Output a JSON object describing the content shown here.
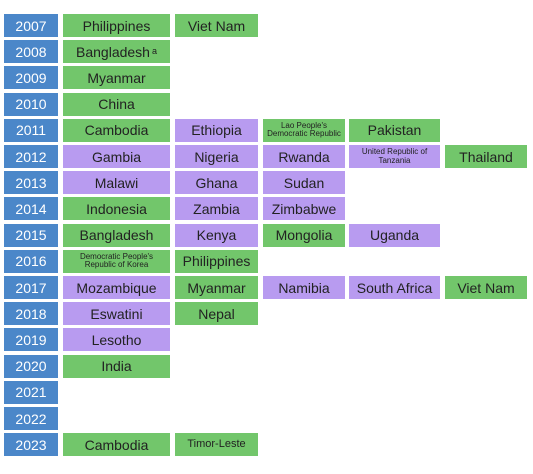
{
  "rows": [
    {
      "year": "2007",
      "cells": [
        {
          "label": "Philippines",
          "color": "#72c66b"
        },
        {
          "label": "Viet Nam",
          "color": "#72c66b"
        }
      ]
    },
    {
      "year": "2008",
      "cells": [
        {
          "label": "Bangladesh",
          "sup": "a",
          "color": "#72c66b"
        }
      ]
    },
    {
      "year": "2009",
      "cells": [
        {
          "label": "Myanmar",
          "color": "#72c66b"
        }
      ]
    },
    {
      "year": "2010",
      "cells": [
        {
          "label": "China",
          "color": "#72c66b"
        }
      ]
    },
    {
      "year": "2011",
      "cells": [
        {
          "label": "Cambodia",
          "color": "#72c66b"
        },
        {
          "label": "Ethiopia",
          "color": "#b89bf0"
        },
        {
          "label": "Lao People's Democratic Republic",
          "color": "#72c66b",
          "small": true
        },
        {
          "label": "Pakistan",
          "color": "#72c66b"
        }
      ]
    },
    {
      "year": "2012",
      "cells": [
        {
          "label": "Gambia",
          "color": "#b89bf0"
        },
        {
          "label": "Nigeria",
          "color": "#b89bf0"
        },
        {
          "label": "Rwanda",
          "color": "#b89bf0"
        },
        {
          "label": "United Republic of Tanzania",
          "color": "#b89bf0",
          "small": true
        },
        {
          "label": "Thailand",
          "color": "#72c66b"
        }
      ]
    },
    {
      "year": "2013",
      "cells": [
        {
          "label": "Malawi",
          "color": "#b89bf0"
        },
        {
          "label": "Ghana",
          "color": "#b89bf0"
        },
        {
          "label": "Sudan",
          "color": "#b89bf0"
        }
      ]
    },
    {
      "year": "2014",
      "cells": [
        {
          "label": "Indonesia",
          "color": "#72c66b"
        },
        {
          "label": "Zambia",
          "color": "#b89bf0"
        },
        {
          "label": "Zimbabwe",
          "color": "#b89bf0"
        }
      ]
    },
    {
      "year": "2015",
      "cells": [
        {
          "label": "Bangladesh",
          "color": "#72c66b"
        },
        {
          "label": "Kenya",
          "color": "#b89bf0"
        },
        {
          "label": "Mongolia",
          "color": "#72c66b"
        },
        {
          "label": "Uganda",
          "color": "#b89bf0"
        }
      ]
    },
    {
      "year": "2016",
      "cells": [
        {
          "label": "Democratic People's Republic of Korea",
          "color": "#72c66b",
          "small": true
        },
        {
          "label": "Philippines",
          "color": "#72c66b"
        }
      ]
    },
    {
      "year": "2017",
      "cells": [
        {
          "label": "Mozambique",
          "color": "#b89bf0"
        },
        {
          "label": "Myanmar",
          "color": "#72c66b"
        },
        {
          "label": "Namibia",
          "color": "#b89bf0"
        },
        {
          "label": "South Africa",
          "color": "#b89bf0"
        },
        {
          "label": "Viet Nam",
          "color": "#72c66b"
        }
      ]
    },
    {
      "year": "2018",
      "cells": [
        {
          "label": "Eswatini",
          "color": "#b89bf0"
        },
        {
          "label": "Nepal",
          "color": "#72c66b"
        }
      ]
    },
    {
      "year": "2019",
      "cells": [
        {
          "label": "Lesotho",
          "color": "#b89bf0"
        }
      ]
    },
    {
      "year": "2020",
      "cells": [
        {
          "label": "India",
          "color": "#72c66b"
        }
      ]
    },
    {
      "year": "2021",
      "cells": []
    },
    {
      "year": "2022",
      "cells": []
    },
    {
      "year": "2023",
      "cells": [
        {
          "label": "Cambodia",
          "color": "#72c66b"
        },
        {
          "label": "Timor-Leste",
          "color": "#72c66b",
          "small": true
        }
      ]
    }
  ]
}
